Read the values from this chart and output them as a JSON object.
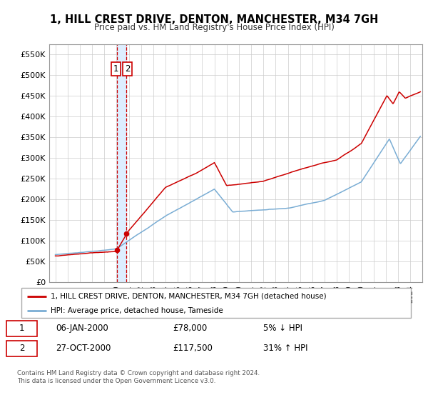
{
  "title": "1, HILL CREST DRIVE, DENTON, MANCHESTER, M34 7GH",
  "subtitle": "Price paid vs. HM Land Registry's House Price Index (HPI)",
  "legend_label_red": "1, HILL CREST DRIVE, DENTON, MANCHESTER, M34 7GH (detached house)",
  "legend_label_blue": "HPI: Average price, detached house, Tameside",
  "footnote1": "Contains HM Land Registry data © Crown copyright and database right 2024.",
  "footnote2": "This data is licensed under the Open Government Licence v3.0.",
  "transaction1_date": "06-JAN-2000",
  "transaction1_price": "£78,000",
  "transaction1_hpi": "5% ↓ HPI",
  "transaction2_date": "27-OCT-2000",
  "transaction2_price": "£117,500",
  "transaction2_hpi": "31% ↑ HPI",
  "red_color": "#cc0000",
  "blue_color": "#7aadd4",
  "shade_color": "#ddeeff",
  "grid_color": "#cccccc",
  "background_color": "#ffffff",
  "ylim": [
    0,
    575000
  ],
  "yticks": [
    0,
    50000,
    100000,
    150000,
    200000,
    250000,
    300000,
    350000,
    400000,
    450000,
    500000,
    550000
  ],
  "ytick_labels": [
    "£0",
    "£50K",
    "£100K",
    "£150K",
    "£200K",
    "£250K",
    "£300K",
    "£350K",
    "£400K",
    "£450K",
    "£500K",
    "£550K"
  ],
  "xlim_start": 1994.5,
  "xlim_end": 2025.0,
  "transaction1_x": 2000.04,
  "transaction1_y": 78000,
  "transaction2_x": 2000.82,
  "transaction2_y": 117500,
  "vline_x1": 2000.04,
  "vline_x2": 2000.82
}
